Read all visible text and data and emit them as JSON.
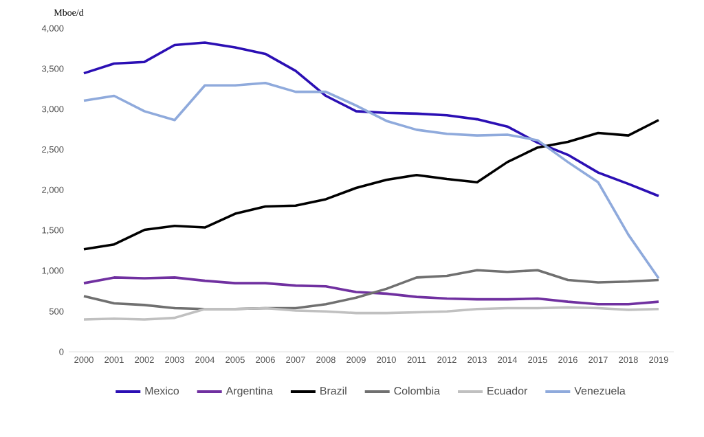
{
  "chart_data": {
    "type": "line",
    "ylabel": "Mboe/d",
    "categories": [
      "2000",
      "2001",
      "2002",
      "2003",
      "2004",
      "2005",
      "2006",
      "2007",
      "2008",
      "2009",
      "2010",
      "2011",
      "2012",
      "2013",
      "2014",
      "2015",
      "2016",
      "2017",
      "2018",
      "2019"
    ],
    "series": [
      {
        "name": "Mexico",
        "color": "#2b0fb4",
        "values": [
          3450,
          3570,
          3590,
          3800,
          3830,
          3770,
          3690,
          3480,
          3170,
          2980,
          2960,
          2950,
          2930,
          2880,
          2790,
          2590,
          2440,
          2220,
          2080,
          1930
        ]
      },
      {
        "name": "Argentina",
        "color": "#7030a0",
        "values": [
          850,
          920,
          910,
          920,
          880,
          850,
          850,
          820,
          810,
          740,
          720,
          680,
          660,
          650,
          650,
          660,
          620,
          590,
          590,
          620
        ]
      },
      {
        "name": "Brazil",
        "color": "#000000",
        "values": [
          1270,
          1330,
          1510,
          1560,
          1540,
          1710,
          1800,
          1810,
          1890,
          2030,
          2130,
          2190,
          2140,
          2100,
          2350,
          2530,
          2600,
          2710,
          2680,
          2870
        ]
      },
      {
        "name": "Colombia",
        "color": "#707070",
        "values": [
          690,
          600,
          580,
          540,
          530,
          530,
          540,
          540,
          590,
          670,
          780,
          920,
          940,
          1010,
          990,
          1010,
          890,
          860,
          870,
          890
        ]
      },
      {
        "name": "Ecuador",
        "color": "#c0c0c0",
        "values": [
          400,
          410,
          400,
          420,
          530,
          530,
          540,
          510,
          500,
          480,
          480,
          490,
          500,
          530,
          540,
          540,
          550,
          540,
          520,
          530
        ]
      },
      {
        "name": "Venezuela",
        "color": "#8faadc",
        "values": [
          3110,
          3170,
          2980,
          2870,
          3300,
          3300,
          3330,
          3220,
          3220,
          3050,
          2860,
          2750,
          2700,
          2680,
          2690,
          2620,
          2350,
          2100,
          1450,
          910
        ]
      }
    ],
    "ylim": [
      0,
      4000
    ],
    "yticks": [
      {
        "value": 0,
        "label": "0"
      },
      {
        "value": 500,
        "label": "500"
      },
      {
        "value": 1000,
        "label": "1,000"
      },
      {
        "value": 1500,
        "label": "1,500"
      },
      {
        "value": 2000,
        "label": "2,000"
      },
      {
        "value": 2500,
        "label": "2,500"
      },
      {
        "value": 3000,
        "label": "3,000"
      },
      {
        "value": 3500,
        "label": "3,500"
      },
      {
        "value": 4000,
        "label": "4,000"
      }
    ],
    "grid": false,
    "legend": "bottom",
    "line_style": "solid",
    "marker": "none"
  }
}
